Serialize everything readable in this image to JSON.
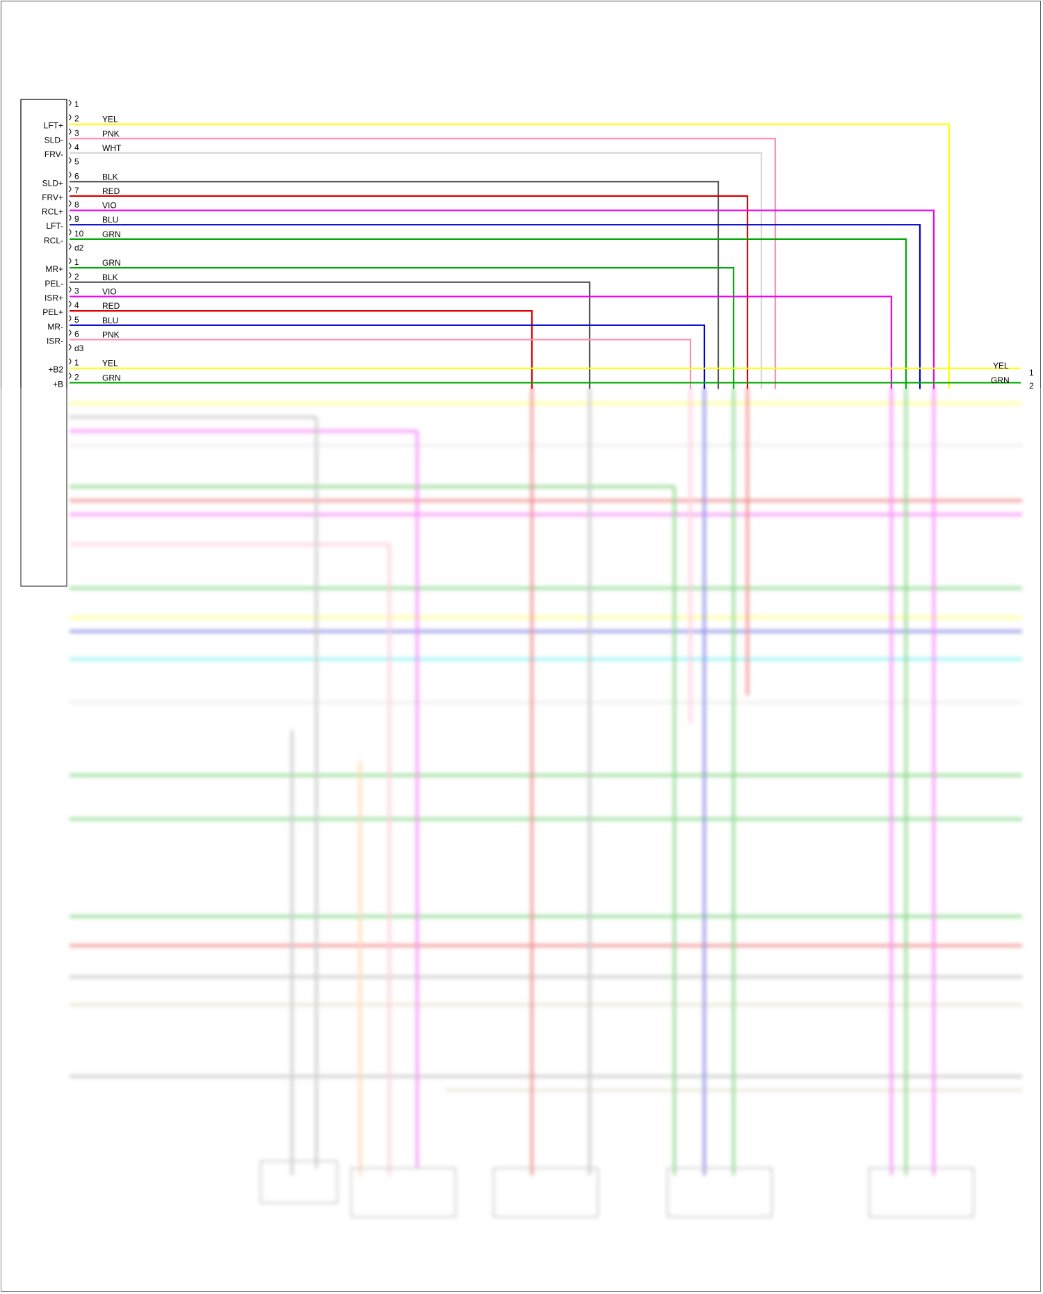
{
  "pins": [
    {
      "pin": "1",
      "signal": "",
      "color_label": "",
      "wire": ""
    },
    {
      "pin": "2",
      "signal": "LFT+",
      "color_label": "YEL",
      "wire": "#ffff00"
    },
    {
      "pin": "3",
      "signal": "SLD-",
      "color_label": "PNK",
      "wire": "#ff8fb0"
    },
    {
      "pin": "4",
      "signal": "FRV-",
      "color_label": "WHT",
      "wire": "#d8d8d8"
    },
    {
      "pin": "5",
      "signal": "",
      "color_label": "",
      "wire": ""
    },
    {
      "pin": "6",
      "signal": "SLD+",
      "color_label": "BLK",
      "wire": "#555555"
    },
    {
      "pin": "7",
      "signal": "FRV+",
      "color_label": "RED",
      "wire": "#dd0000"
    },
    {
      "pin": "8",
      "signal": "RCL+",
      "color_label": "VIO",
      "wire": "#ee00ee"
    },
    {
      "pin": "9",
      "signal": "LFT-",
      "color_label": "BLU",
      "wire": "#0000cc"
    },
    {
      "pin": "10",
      "signal": "RCL-",
      "color_label": "GRN",
      "wire": "#00aa00"
    },
    {
      "pin": "d2",
      "signal": "",
      "color_label": "",
      "wire": ""
    },
    {
      "pin": "1",
      "signal": "MR+",
      "color_label": "GRN",
      "wire": "#00aa00"
    },
    {
      "pin": "2",
      "signal": "PEL-",
      "color_label": "BLK",
      "wire": "#555555"
    },
    {
      "pin": "3",
      "signal": "ISR+",
      "color_label": "VIO",
      "wire": "#ee00ee"
    },
    {
      "pin": "4",
      "signal": "PEL+",
      "color_label": "RED",
      "wire": "#dd0000"
    },
    {
      "pin": "5",
      "signal": "MR-",
      "color_label": "BLU",
      "wire": "#0000cc"
    },
    {
      "pin": "6",
      "signal": "ISR-",
      "color_label": "PNK",
      "wire": "#ff8fb0"
    },
    {
      "pin": "d3",
      "signal": "",
      "color_label": "",
      "wire": ""
    },
    {
      "pin": "1",
      "signal": "+B2",
      "color_label": "YEL",
      "wire": "#ffff00"
    },
    {
      "pin": "2",
      "signal": "+B",
      "color_label": "GRN",
      "wire": "#00aa00"
    }
  ],
  "right_terminals": [
    {
      "label": "YEL",
      "pin": "1"
    },
    {
      "label": "GRN",
      "pin": "2"
    }
  ],
  "colors": {
    "yellow": "#ffff00",
    "pink": "#ff8fb0",
    "white": "#d8d8d8",
    "black": "#555555",
    "red": "#dd0000",
    "violet": "#ee00ee",
    "blue": "#0000cc",
    "green": "#00aa00",
    "cyan": "#00e5ee",
    "orange": "#ffaa55",
    "tan": "#cfc49a",
    "gray": "#888888"
  }
}
